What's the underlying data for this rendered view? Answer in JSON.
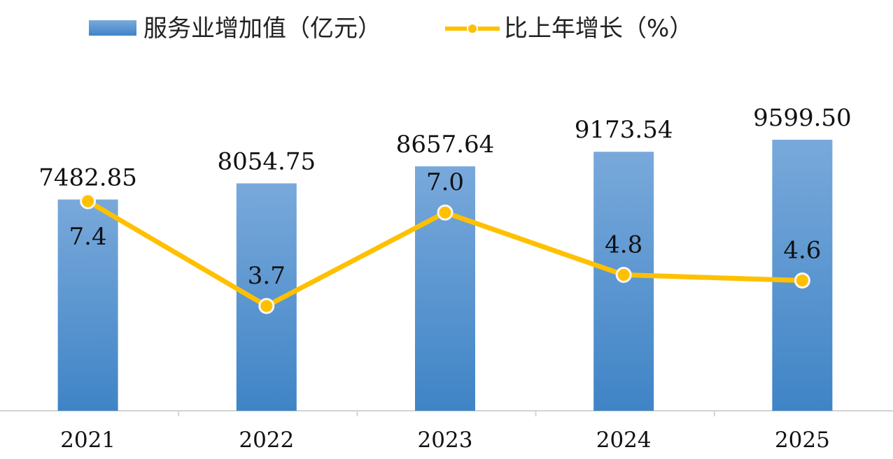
{
  "chart_data": {
    "type": "bar",
    "categories": [
      "2021",
      "2022",
      "2023",
      "2024",
      "2025"
    ],
    "series": [
      {
        "name": "服务业增加值（亿元）",
        "type": "bar",
        "values": [
          7482.85,
          8054.75,
          8657.64,
          9173.54,
          9599.5
        ],
        "labels": [
          "7482.85",
          "8054.75",
          "8657.64",
          "9173.54",
          "9599.50"
        ],
        "color": "#5B9BD5"
      },
      {
        "name": "比上年增长（%）",
        "type": "line",
        "values": [
          7.4,
          3.7,
          7.0,
          4.8,
          4.6
        ],
        "labels": [
          "7.4",
          "3.7",
          "7.0",
          "4.8",
          "4.6"
        ],
        "color": "#FFC000"
      }
    ],
    "title": "",
    "xlabel": "",
    "ylabel": "",
    "legend_position": "top-left",
    "grid": false
  }
}
